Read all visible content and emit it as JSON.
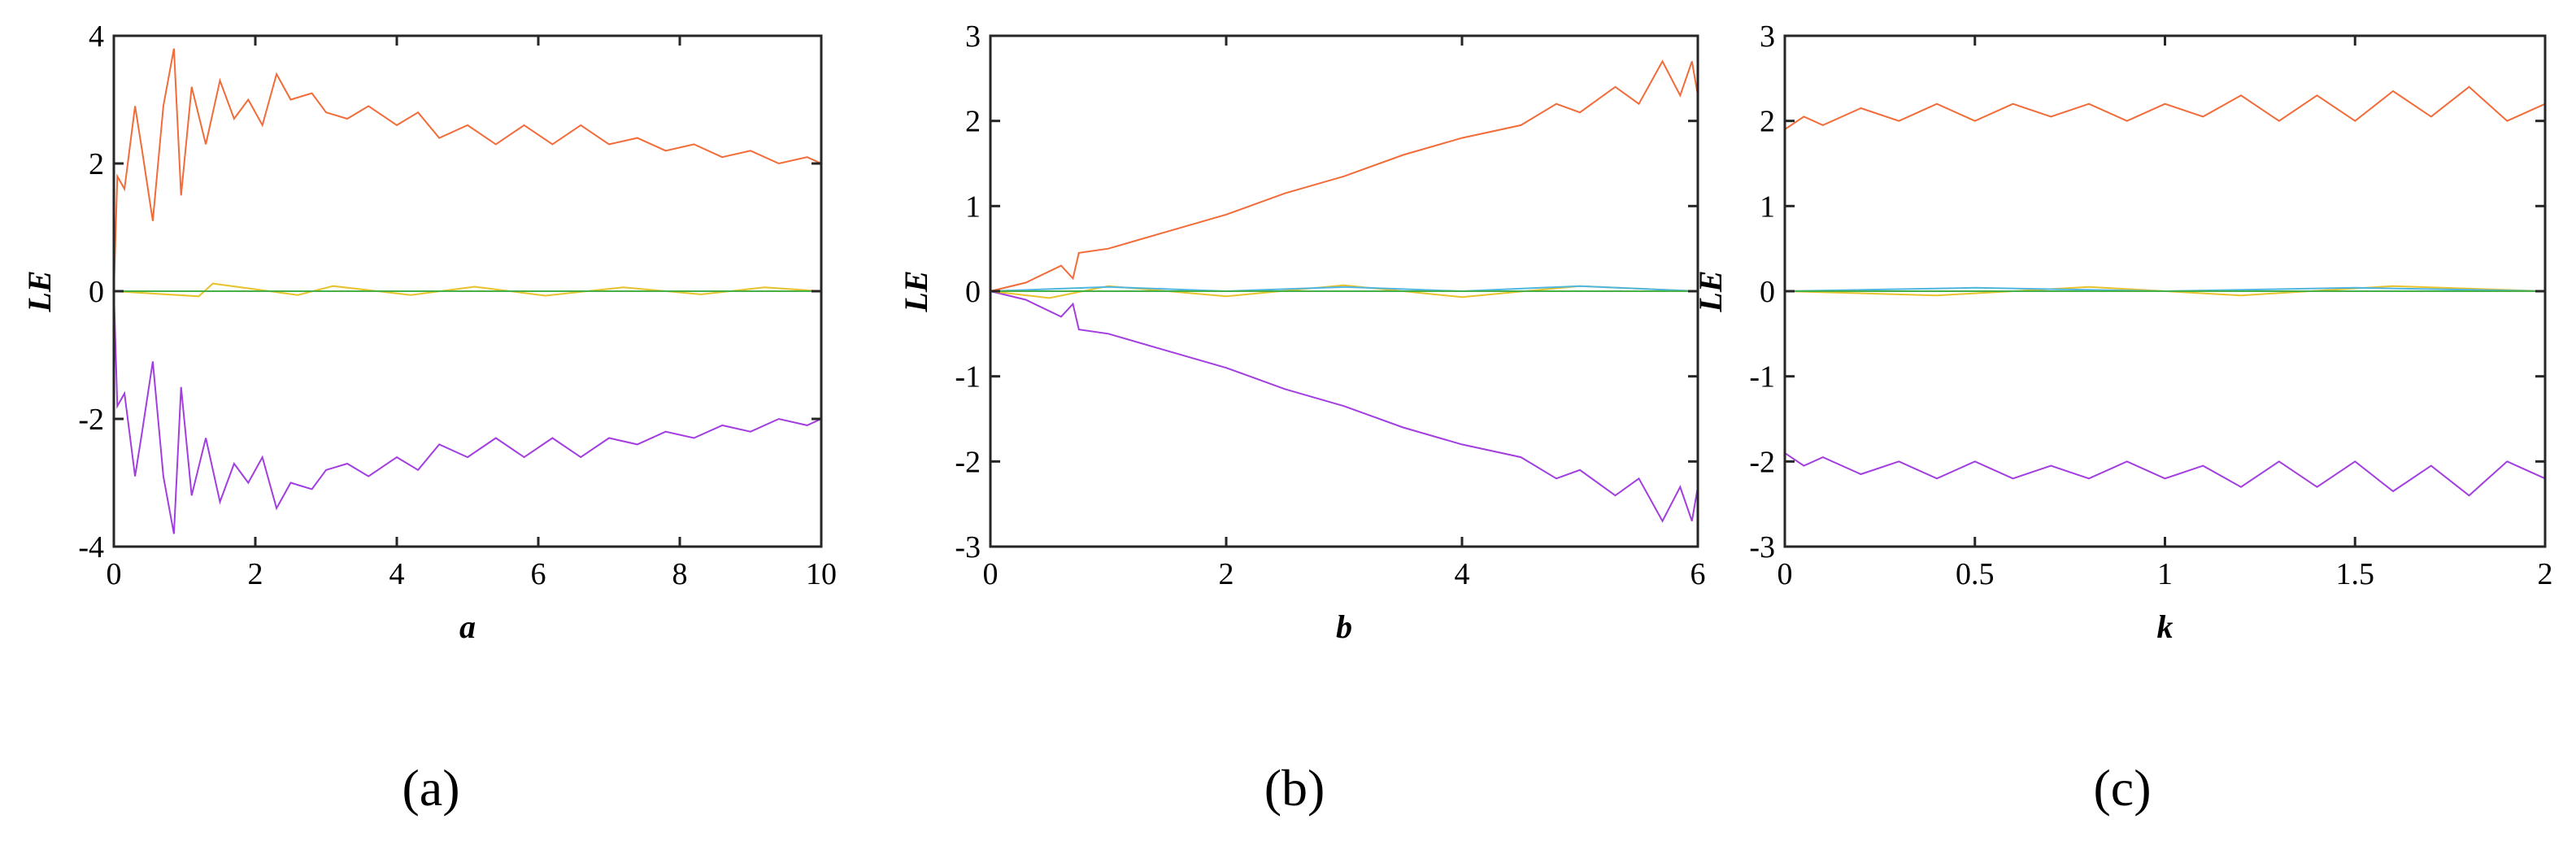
{
  "chart_data": [
    {
      "type": "line",
      "caption": "(a)",
      "xlabel": "a",
      "ylabel": "LE",
      "xlim": [
        0,
        10
      ],
      "ylim": [
        -4,
        4
      ],
      "xticks": [
        0,
        2,
        4,
        6,
        8,
        10
      ],
      "xtick_labels": [
        "0",
        "2",
        "4",
        "6",
        "8",
        "10"
      ],
      "yticks": [
        -4,
        -2,
        0,
        2,
        4
      ],
      "ytick_labels": [
        "-4",
        "-2",
        "0",
        "2",
        "4"
      ],
      "grid": false,
      "series": [
        {
          "color": "#f26b38",
          "values": [
            [
              0,
              0
            ],
            [
              0.05,
              1.8
            ],
            [
              0.15,
              1.6
            ],
            [
              0.3,
              2.9
            ],
            [
              0.4,
              2.2
            ],
            [
              0.55,
              1.1
            ],
            [
              0.7,
              2.9
            ],
            [
              0.85,
              3.8
            ],
            [
              0.95,
              1.5
            ],
            [
              1.1,
              3.2
            ],
            [
              1.3,
              2.3
            ],
            [
              1.5,
              3.3
            ],
            [
              1.7,
              2.7
            ],
            [
              1.9,
              3.0
            ],
            [
              2.1,
              2.6
            ],
            [
              2.3,
              3.4
            ],
            [
              2.5,
              3.0
            ],
            [
              2.8,
              3.1
            ],
            [
              3.0,
              2.8
            ],
            [
              3.3,
              2.7
            ],
            [
              3.6,
              2.9
            ],
            [
              4.0,
              2.6
            ],
            [
              4.3,
              2.8
            ],
            [
              4.6,
              2.4
            ],
            [
              5.0,
              2.6
            ],
            [
              5.4,
              2.3
            ],
            [
              5.8,
              2.6
            ],
            [
              6.2,
              2.3
            ],
            [
              6.6,
              2.6
            ],
            [
              7.0,
              2.3
            ],
            [
              7.4,
              2.4
            ],
            [
              7.8,
              2.2
            ],
            [
              8.2,
              2.3
            ],
            [
              8.6,
              2.1
            ],
            [
              9.0,
              2.2
            ],
            [
              9.4,
              2.0
            ],
            [
              9.8,
              2.1
            ],
            [
              10,
              2.0
            ]
          ]
        },
        {
          "color": "#a23ee0",
          "values": [
            [
              0,
              0
            ],
            [
              0.05,
              -1.8
            ],
            [
              0.15,
              -1.6
            ],
            [
              0.3,
              -2.9
            ],
            [
              0.4,
              -2.2
            ],
            [
              0.55,
              -1.1
            ],
            [
              0.7,
              -2.9
            ],
            [
              0.85,
              -3.8
            ],
            [
              0.95,
              -1.5
            ],
            [
              1.1,
              -3.2
            ],
            [
              1.3,
              -2.3
            ],
            [
              1.5,
              -3.3
            ],
            [
              1.7,
              -2.7
            ],
            [
              1.9,
              -3.0
            ],
            [
              2.1,
              -2.6
            ],
            [
              2.3,
              -3.4
            ],
            [
              2.5,
              -3.0
            ],
            [
              2.8,
              -3.1
            ],
            [
              3.0,
              -2.8
            ],
            [
              3.3,
              -2.7
            ],
            [
              3.6,
              -2.9
            ],
            [
              4.0,
              -2.6
            ],
            [
              4.3,
              -2.8
            ],
            [
              4.6,
              -2.4
            ],
            [
              5.0,
              -2.6
            ],
            [
              5.4,
              -2.3
            ],
            [
              5.8,
              -2.6
            ],
            [
              6.2,
              -2.3
            ],
            [
              6.6,
              -2.6
            ],
            [
              7.0,
              -2.3
            ],
            [
              7.4,
              -2.4
            ],
            [
              7.8,
              -2.2
            ],
            [
              8.2,
              -2.3
            ],
            [
              8.6,
              -2.1
            ],
            [
              9.0,
              -2.2
            ],
            [
              9.4,
              -2.0
            ],
            [
              9.8,
              -2.1
            ],
            [
              10,
              -2.0
            ]
          ]
        },
        {
          "color": "#e8c22a",
          "values": [
            [
              0,
              0
            ],
            [
              1.2,
              -0.08
            ],
            [
              1.4,
              0.12
            ],
            [
              2.6,
              -0.06
            ],
            [
              3.1,
              0.08
            ],
            [
              4.2,
              -0.06
            ],
            [
              5.1,
              0.07
            ],
            [
              6.1,
              -0.07
            ],
            [
              7.2,
              0.06
            ],
            [
              8.3,
              -0.05
            ],
            [
              9.2,
              0.06
            ],
            [
              10,
              0
            ]
          ]
        },
        {
          "color": "#4fb6e0",
          "values": [
            [
              0,
              0
            ],
            [
              10,
              0
            ]
          ]
        },
        {
          "color": "#45b045",
          "values": [
            [
              0,
              0
            ],
            [
              10,
              0
            ]
          ]
        }
      ]
    },
    {
      "type": "line",
      "caption": "(b)",
      "xlabel": "b",
      "ylabel": "LE",
      "xlim": [
        0,
        6
      ],
      "ylim": [
        -3,
        3
      ],
      "xticks": [
        0,
        2,
        4,
        6
      ],
      "xtick_labels": [
        "0",
        "2",
        "4",
        "6"
      ],
      "yticks": [
        -3,
        -2,
        -1,
        0,
        1,
        2,
        3
      ],
      "ytick_labels": [
        "-3",
        "-2",
        "-1",
        "0",
        "1",
        "2",
        "3"
      ],
      "grid": false,
      "series": [
        {
          "color": "#f26b38",
          "values": [
            [
              0,
              0
            ],
            [
              0.3,
              0.1
            ],
            [
              0.6,
              0.3
            ],
            [
              0.7,
              0.15
            ],
            [
              0.75,
              0.45
            ],
            [
              1.0,
              0.5
            ],
            [
              1.5,
              0.7
            ],
            [
              2.0,
              0.9
            ],
            [
              2.5,
              1.15
            ],
            [
              3.0,
              1.35
            ],
            [
              3.5,
              1.6
            ],
            [
              4.0,
              1.8
            ],
            [
              4.5,
              1.95
            ],
            [
              4.8,
              2.2
            ],
            [
              5.0,
              2.1
            ],
            [
              5.3,
              2.4
            ],
            [
              5.5,
              2.2
            ],
            [
              5.7,
              2.7
            ],
            [
              5.85,
              2.3
            ],
            [
              5.95,
              2.7
            ],
            [
              6.0,
              2.3
            ]
          ]
        },
        {
          "color": "#a23ee0",
          "values": [
            [
              0,
              0
            ],
            [
              0.3,
              -0.1
            ],
            [
              0.6,
              -0.3
            ],
            [
              0.7,
              -0.15
            ],
            [
              0.75,
              -0.45
            ],
            [
              1.0,
              -0.5
            ],
            [
              1.5,
              -0.7
            ],
            [
              2.0,
              -0.9
            ],
            [
              2.5,
              -1.15
            ],
            [
              3.0,
              -1.35
            ],
            [
              3.5,
              -1.6
            ],
            [
              4.0,
              -1.8
            ],
            [
              4.5,
              -1.95
            ],
            [
              4.8,
              -2.2
            ],
            [
              5.0,
              -2.1
            ],
            [
              5.3,
              -2.4
            ],
            [
              5.5,
              -2.2
            ],
            [
              5.7,
              -2.7
            ],
            [
              5.85,
              -2.3
            ],
            [
              5.95,
              -2.7
            ],
            [
              6.0,
              -2.3
            ]
          ]
        },
        {
          "color": "#e8c22a",
          "values": [
            [
              0,
              0
            ],
            [
              0.5,
              -0.08
            ],
            [
              1.0,
              0.06
            ],
            [
              2.0,
              -0.06
            ],
            [
              3.0,
              0.07
            ],
            [
              4.0,
              -0.07
            ],
            [
              5.0,
              0.06
            ],
            [
              6.0,
              0
            ]
          ]
        },
        {
          "color": "#4fb6e0",
          "values": [
            [
              0,
              0
            ],
            [
              1.0,
              0.05
            ],
            [
              2.0,
              0
            ],
            [
              3.0,
              0.05
            ],
            [
              4.0,
              0
            ],
            [
              5.0,
              0.06
            ],
            [
              6.0,
              0
            ]
          ]
        },
        {
          "color": "#45b045",
          "values": [
            [
              0,
              0
            ],
            [
              6,
              0
            ]
          ]
        }
      ]
    },
    {
      "type": "line",
      "caption": "(c)",
      "xlabel": "k",
      "ylabel": "LE",
      "xlim": [
        0,
        2
      ],
      "ylim": [
        -3,
        3
      ],
      "xticks": [
        0,
        0.5,
        1,
        1.5,
        2
      ],
      "xtick_labels": [
        "0",
        "0.5",
        "1",
        "1.5",
        "2"
      ],
      "yticks": [
        -3,
        -2,
        -1,
        0,
        1,
        2,
        3
      ],
      "ytick_labels": [
        "-3",
        "-2",
        "-1",
        "0",
        "1",
        "2",
        "3"
      ],
      "grid": false,
      "series": [
        {
          "color": "#f26b38",
          "values": [
            [
              0,
              1.9
            ],
            [
              0.05,
              2.05
            ],
            [
              0.1,
              1.95
            ],
            [
              0.2,
              2.15
            ],
            [
              0.3,
              2.0
            ],
            [
              0.4,
              2.2
            ],
            [
              0.5,
              2.0
            ],
            [
              0.6,
              2.2
            ],
            [
              0.7,
              2.05
            ],
            [
              0.8,
              2.2
            ],
            [
              0.9,
              2.0
            ],
            [
              1.0,
              2.2
            ],
            [
              1.1,
              2.05
            ],
            [
              1.2,
              2.3
            ],
            [
              1.3,
              2.0
            ],
            [
              1.4,
              2.3
            ],
            [
              1.5,
              2.0
            ],
            [
              1.6,
              2.35
            ],
            [
              1.7,
              2.05
            ],
            [
              1.8,
              2.4
            ],
            [
              1.9,
              2.0
            ],
            [
              2.0,
              2.2
            ]
          ]
        },
        {
          "color": "#a23ee0",
          "values": [
            [
              0,
              -1.9
            ],
            [
              0.05,
              -2.05
            ],
            [
              0.1,
              -1.95
            ],
            [
              0.2,
              -2.15
            ],
            [
              0.3,
              -2.0
            ],
            [
              0.4,
              -2.2
            ],
            [
              0.5,
              -2.0
            ],
            [
              0.6,
              -2.2
            ],
            [
              0.7,
              -2.05
            ],
            [
              0.8,
              -2.2
            ],
            [
              0.9,
              -2.0
            ],
            [
              1.0,
              -2.2
            ],
            [
              1.1,
              -2.05
            ],
            [
              1.2,
              -2.3
            ],
            [
              1.3,
              -2.0
            ],
            [
              1.4,
              -2.3
            ],
            [
              1.5,
              -2.0
            ],
            [
              1.6,
              -2.35
            ],
            [
              1.7,
              -2.05
            ],
            [
              1.8,
              -2.4
            ],
            [
              1.9,
              -2.0
            ],
            [
              2.0,
              -2.2
            ]
          ]
        },
        {
          "color": "#e8c22a",
          "values": [
            [
              0,
              0
            ],
            [
              0.4,
              -0.05
            ],
            [
              0.8,
              0.05
            ],
            [
              1.2,
              -0.05
            ],
            [
              1.6,
              0.06
            ],
            [
              2.0,
              0
            ]
          ]
        },
        {
          "color": "#4fb6e0",
          "values": [
            [
              0,
              0
            ],
            [
              0.5,
              0.04
            ],
            [
              1.0,
              0
            ],
            [
              1.5,
              0.04
            ],
            [
              2.0,
              0
            ]
          ]
        },
        {
          "color": "#45b045",
          "values": [
            [
              0,
              0
            ],
            [
              2,
              0
            ]
          ]
        }
      ]
    }
  ]
}
